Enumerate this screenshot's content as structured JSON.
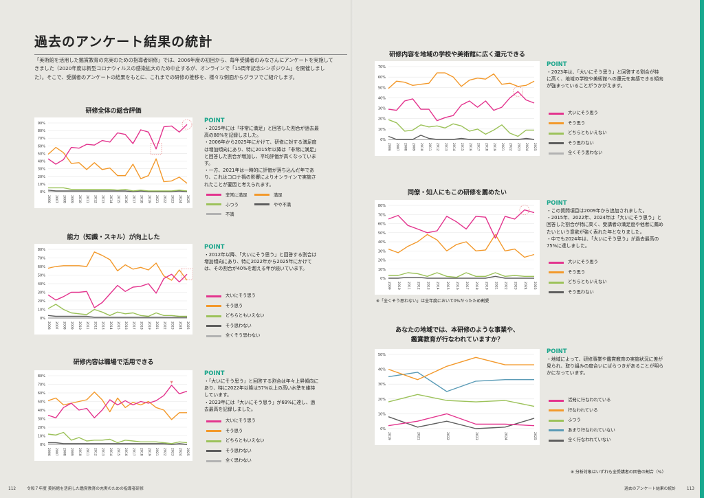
{
  "page": {
    "title": "過去のアンケート結果の統計",
    "intro": "「美術館を活用した鑑賞教育の充実のための指導者研修」では、2006年度の初回から、毎年受講者のみなさんにアンケートを実施してきました（2020年度は新型コロナウィルスの感染拡大のため中止するが、オンラインで「15周年記念シンポジウム」を開催しました）。そこで、受講者のアンケートの結果をもとに、これまでの研修の推移を、様々な側面からグラフでご紹介します。",
    "footer_left_page": "112",
    "footer_left_text": "令和７年度 美術館を活用した鑑賞教育の充実のための指導者研修",
    "footer_right_text": "過去のアンケート結果の統計",
    "footer_right_page": "113"
  },
  "colors": {
    "pink": "#e3348e",
    "orange": "#f3992b",
    "green": "#9cc25a",
    "dark": "#5e5e5e",
    "gray": "#b2b2b2",
    "blue": "#5a9bb6",
    "dash": "#e88080"
  },
  "chart_data": [
    {
      "id": "c1",
      "type": "line",
      "title": "研修全体の総合評価",
      "x": [
        "2006",
        "2007",
        "2008",
        "2009",
        "2010",
        "2011",
        "2012",
        "2013",
        "2014",
        "2015",
        "2016",
        "2017",
        "2018",
        "2019",
        "2021",
        "2022",
        "2023",
        "2024",
        "2025"
      ],
      "ylim": [
        0,
        90
      ],
      "yticks": [
        0,
        10,
        20,
        30,
        40,
        50,
        60,
        70,
        80,
        90
      ],
      "series": [
        {
          "name": "非常に満足",
          "color": "pink",
          "values": [
            43,
            36,
            42,
            58,
            57,
            62,
            61,
            67,
            65,
            77,
            75,
            63,
            81,
            78,
            56,
            85,
            86,
            78,
            88
          ]
        },
        {
          "name": "満足",
          "color": "orange",
          "values": [
            49,
            58,
            51,
            37,
            38,
            29,
            38,
            29,
            31,
            21,
            21,
            36,
            17,
            21,
            43,
            13,
            14,
            19,
            11
          ]
        },
        {
          "name": "ふつう",
          "color": "green",
          "values": [
            5,
            5,
            5,
            3,
            3,
            3,
            3,
            3,
            3,
            2,
            3,
            1,
            2,
            1,
            1,
            1,
            1,
            2,
            1
          ]
        },
        {
          "name": "やや不満",
          "color": "dark",
          "values": [
            2,
            1,
            1,
            1,
            1,
            1,
            1,
            1,
            1,
            1,
            1,
            0,
            1,
            0,
            0,
            0,
            0,
            1,
            0
          ]
        },
        {
          "name": "不満",
          "color": "gray",
          "values": [
            0,
            0,
            0,
            0,
            0,
            0,
            0,
            0,
            0,
            0,
            0,
            0,
            0,
            0,
            0,
            0,
            0,
            0,
            0
          ]
        }
      ],
      "point": [
        "・2025年には「非常に満足」と回答した割合が過去最高の88%を記録しました。",
        "・2006年から2025年にかけて、研修に対する満足度は増加傾向にあり、特に2015年以降は「非常に満足」と回答した割合が増加し、平均評価が高くなっています。",
        "・一方、2021年は一時的に評価が落ち込んだ年であり、これはコロナ禍の影響によりオンラインで実施されたことが要因と考えられます。"
      ]
    },
    {
      "id": "c2",
      "type": "line",
      "title": "能力（知識・スキル）が向上した",
      "x": [
        "2006",
        "2007",
        "2008",
        "2009",
        "2010",
        "2011",
        "2012",
        "2013",
        "2014",
        "2015",
        "2016",
        "2017",
        "2018",
        "2019",
        "2021",
        "2022",
        "2023",
        "2024",
        "2025"
      ],
      "ylim": [
        0,
        80
      ],
      "yticks": [
        0,
        10,
        20,
        30,
        40,
        50,
        60,
        70,
        80
      ],
      "series": [
        {
          "name": "大いにそう思う",
          "color": "pink",
          "values": [
            27,
            21,
            25,
            30,
            30,
            31,
            12,
            18,
            28,
            38,
            31,
            36,
            37,
            40,
            29,
            46,
            51,
            42,
            51
          ]
        },
        {
          "name": "そう思う",
          "color": "orange",
          "values": [
            58,
            60,
            61,
            61,
            61,
            60,
            77,
            73,
            68,
            55,
            62,
            57,
            59,
            56,
            64,
            49,
            44,
            56,
            44
          ]
        },
        {
          "name": "どちらともいえない",
          "color": "green",
          "values": [
            11,
            16,
            10,
            6,
            5,
            4,
            10,
            7,
            3,
            7,
            5,
            6,
            3,
            2,
            6,
            3,
            3,
            2,
            2
          ]
        },
        {
          "name": "そう思わない",
          "color": "dark",
          "values": [
            3,
            2,
            2,
            2,
            2,
            2,
            1,
            1,
            1,
            1,
            1,
            1,
            1,
            1,
            1,
            1,
            1,
            1,
            1
          ]
        },
        {
          "name": "全くそう思わない",
          "color": "gray",
          "values": [
            0,
            0,
            0,
            0,
            0,
            0,
            0,
            0,
            0,
            0,
            0,
            0,
            0,
            0,
            0,
            0,
            0,
            0,
            0
          ]
        }
      ],
      "point": [
        "・2012年以降、「大いにそう思う」と回答する割合は増加傾向にあり、特に2022年から2025年にかけては、その割合が40%を超える年が続いています。"
      ]
    },
    {
      "id": "c3",
      "type": "line",
      "title": "研修内容は職場で活用できる",
      "x": [
        "2006",
        "2007",
        "2008",
        "2009",
        "2010",
        "2011",
        "2012",
        "2013",
        "2014",
        "2015",
        "2016",
        "2017",
        "2018",
        "2019",
        "2021",
        "2022",
        "2023",
        "2024",
        "2025"
      ],
      "ylim": [
        0,
        80
      ],
      "yticks": [
        0,
        10,
        20,
        30,
        40,
        50,
        60,
        70,
        80
      ],
      "series": [
        {
          "name": "大いにそう思う",
          "color": "pink",
          "values": [
            34,
            31,
            43,
            48,
            40,
            42,
            31,
            40,
            52,
            46,
            51,
            46,
            50,
            48,
            51,
            57,
            69,
            59,
            62
          ]
        },
        {
          "name": "そう思う",
          "color": "orange",
          "values": [
            51,
            54,
            46,
            48,
            50,
            52,
            61,
            52,
            38,
            54,
            43,
            49,
            46,
            50,
            43,
            40,
            29,
            37,
            37
          ]
        },
        {
          "name": "どちらともいえない",
          "color": "green",
          "values": [
            12,
            11,
            14,
            5,
            8,
            4,
            5,
            5,
            6,
            2,
            5,
            4,
            3,
            3,
            3,
            2,
            1,
            3,
            2
          ]
        },
        {
          "name": "そう思わない",
          "color": "dark",
          "values": [
            2,
            2,
            1,
            1,
            1,
            1,
            1,
            1,
            1,
            1,
            1,
            1,
            1,
            1,
            1,
            1,
            0,
            1,
            0
          ]
        },
        {
          "name": "全く思わない",
          "color": "gray",
          "values": [
            0,
            0,
            0,
            0,
            0,
            0,
            0,
            0,
            0,
            0,
            0,
            0,
            0,
            0,
            0,
            0,
            0,
            0,
            0
          ]
        }
      ],
      "point": [
        "・「大いにそう思う」と回答する割合は年々上昇傾向にあり、特に2022年以降は57%以上の高い水準を維持しています。",
        "・2023年には「大いにそう思う」が69%に達し、過去最高を記録しました。"
      ]
    },
    {
      "id": "c4",
      "type": "line",
      "title": "研修内容を地域の学校や美術館に広く還元できる",
      "x": [
        "2006",
        "2007",
        "2008",
        "2009",
        "2010",
        "2011",
        "2012",
        "2013",
        "2014",
        "2015",
        "2016",
        "2017",
        "2018",
        "2019",
        "2021",
        "2022",
        "2023",
        "2024",
        "2025"
      ],
      "ylim": [
        0,
        70
      ],
      "yticks": [
        0,
        10,
        20,
        30,
        40,
        50,
        60,
        70
      ],
      "series": [
        {
          "name": "大いにそう思う",
          "color": "pink",
          "values": [
            29,
            28,
            37,
            39,
            29,
            29,
            18,
            21,
            23,
            33,
            37,
            31,
            37,
            28,
            31,
            40,
            46,
            38,
            35
          ]
        },
        {
          "name": "そう思う",
          "color": "orange",
          "values": [
            49,
            56,
            55,
            52,
            53,
            54,
            64,
            64,
            60,
            51,
            57,
            59,
            58,
            63,
            53,
            54,
            51,
            52,
            56
          ]
        },
        {
          "name": "どちらともいえない",
          "color": "green",
          "values": [
            19,
            16,
            8,
            9,
            14,
            12,
            13,
            11,
            15,
            13,
            8,
            10,
            5,
            9,
            14,
            6,
            3,
            9,
            9
          ]
        },
        {
          "name": "そう思わない",
          "color": "dark",
          "values": [
            3,
            0,
            0,
            0,
            4,
            1,
            0,
            0,
            0,
            1,
            0,
            0,
            0,
            0,
            0,
            0,
            0,
            1,
            0
          ]
        },
        {
          "name": "全くそう思わない",
          "color": "gray",
          "values": [
            0,
            0,
            0,
            0,
            0,
            0,
            0,
            0,
            0,
            0,
            0,
            0,
            0,
            0,
            0,
            0,
            0,
            0,
            0
          ]
        }
      ],
      "point": [
        "・2023年は、「大いにそう思う」と回答する割合が特に高く、地域の学校や美術館への還元を実感できる傾向が強まっていることがうかがえます。"
      ]
    },
    {
      "id": "c5",
      "type": "line",
      "title": "同僚・知人にもこの研修を薦めたい",
      "x": [
        "2009",
        "2010",
        "2011",
        "2012",
        "2013",
        "2014",
        "2015",
        "2016",
        "2017",
        "2018",
        "2019",
        "2021",
        "2022",
        "2023",
        "2024",
        "2025"
      ],
      "ylim": [
        0,
        80
      ],
      "yticks": [
        0,
        10,
        20,
        30,
        40,
        50,
        60,
        70,
        80
      ],
      "series": [
        {
          "name": "大いにそう思う",
          "color": "pink",
          "values": [
            65,
            69,
            58,
            54,
            50,
            52,
            68,
            62,
            54,
            68,
            67,
            44,
            68,
            65,
            75,
            72
          ]
        },
        {
          "name": "そう思う",
          "color": "orange",
          "values": [
            32,
            28,
            35,
            40,
            48,
            42,
            30,
            37,
            40,
            30,
            31,
            48,
            30,
            32,
            23,
            26
          ]
        },
        {
          "name": "どちらともいえない",
          "color": "green",
          "values": [
            3,
            3,
            6,
            5,
            2,
            6,
            2,
            1,
            6,
            2,
            2,
            6,
            2,
            3,
            2,
            2
          ]
        },
        {
          "name": "そう思わない",
          "color": "dark",
          "values": [
            0,
            0,
            1,
            1,
            0,
            0,
            0,
            0,
            0,
            0,
            0,
            2,
            0,
            0,
            0,
            0
          ]
        }
      ],
      "point": [
        "・この質問項目は2009年から追加されました。",
        "・2015年、2022年、2024年は「大いにそう思う」と回答した割合が特に高く、受講者の満足度や他者に薦めたいという意欲が強く表れた年となりました。",
        "・中でも2024年は、「大いにそう思う」が過去最高の75%に達しました。"
      ],
      "note": "※「全くそう思わない」は全年度において0%だったため割愛"
    },
    {
      "id": "c6",
      "type": "line",
      "title_line1": "あなたの地域では、本研修のような事業や、",
      "title_line2": "鑑賞教育が行なわれていますか？",
      "x": [
        "2019",
        "2021",
        "2022",
        "2023",
        "2024",
        "2025"
      ],
      "ylim": [
        0,
        50
      ],
      "yticks": [
        0,
        10,
        20,
        30,
        40,
        50
      ],
      "series": [
        {
          "name": "活発に行なわれている",
          "color": "pink",
          "values": [
            2,
            5,
            10,
            3,
            3,
            2
          ]
        },
        {
          "name": "行なわれている",
          "color": "orange",
          "values": [
            40,
            33,
            42,
            48,
            43,
            43
          ]
        },
        {
          "name": "ふつう",
          "color": "green",
          "values": [
            18,
            23,
            19,
            18,
            19,
            15
          ]
        },
        {
          "name": "あまり行なわれていない",
          "color": "blue",
          "values": [
            35,
            38,
            25,
            32,
            33,
            33
          ]
        },
        {
          "name": "全く行なわれていない",
          "color": "dark",
          "values": [
            8,
            1,
            5,
            0,
            1,
            7
          ]
        }
      ],
      "point": [
        "・地域によって、研修事業や鑑賞教育の実施状況に差が見られ、取り組みの度合いにばらつきがあることが明らかになっています。"
      ],
      "note": "※ 分析対象はいずれも全受講者の回答の割合（%）"
    }
  ]
}
